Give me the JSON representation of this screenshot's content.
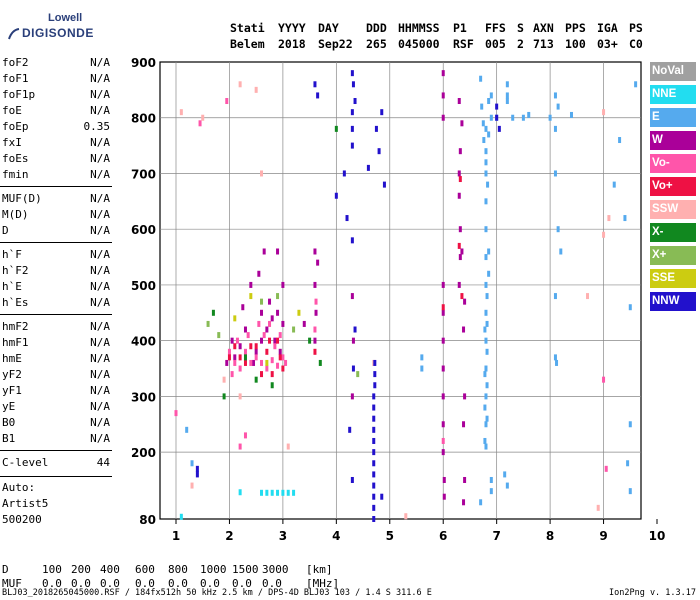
{
  "logo": {
    "top": "Lowell",
    "bottom": "DIGISONDE"
  },
  "header": {
    "line1": [
      "Stati",
      "YYYY",
      "DAY",
      "DDD",
      "HHMMSS",
      "P1",
      "FFS",
      "S",
      "AXN",
      "PPS",
      "IGA",
      "PS"
    ],
    "line2": [
      "Belem",
      "2018",
      "Sep22",
      "265",
      "045000",
      "RSF",
      "005",
      "2",
      "713",
      "100",
      "03+",
      "C0"
    ]
  },
  "params": [
    {
      "name": "foF2",
      "value": "N/A"
    },
    {
      "name": "foF1",
      "value": "N/A"
    },
    {
      "name": "foF1p",
      "value": "N/A"
    },
    {
      "name": "foE",
      "value": "N/A"
    },
    {
      "name": "foEp",
      "value": "0.35"
    },
    {
      "name": "fxI",
      "value": "N/A"
    },
    {
      "name": "foEs",
      "value": "N/A"
    },
    {
      "name": "fmin",
      "value": "N/A"
    },
    {
      "name": "MUF(D)",
      "value": "N/A"
    },
    {
      "name": "M(D)",
      "value": "N/A"
    },
    {
      "name": "D",
      "value": "N/A"
    },
    {
      "name": "h`F",
      "value": "N/A"
    },
    {
      "name": "h`F2",
      "value": "N/A"
    },
    {
      "name": "h`E",
      "value": "N/A"
    },
    {
      "name": "h`Es",
      "value": "N/A"
    },
    {
      "name": "hmF2",
      "value": "N/A"
    },
    {
      "name": "hmF1",
      "value": "N/A"
    },
    {
      "name": "hmE",
      "value": "N/A"
    },
    {
      "name": "yF2",
      "value": "N/A"
    },
    {
      "name": "yF1",
      "value": "N/A"
    },
    {
      "name": "yE",
      "value": "N/A"
    },
    {
      "name": "B0",
      "value": "N/A"
    },
    {
      "name": "B1",
      "value": "N/A"
    },
    {
      "name": "C-level",
      "value": "44"
    }
  ],
  "auto": {
    "label": "Auto:",
    "artist": "Artist5",
    "version": "500200"
  },
  "legend": [
    {
      "label": "NoVal",
      "color": "#a0a0a0"
    },
    {
      "label": "NNE",
      "color": "#22ddf0"
    },
    {
      "label": "E",
      "color": "#55aaee"
    },
    {
      "label": "W",
      "color": "#aa0099"
    },
    {
      "label": "Vo-",
      "color": "#ff55aa"
    },
    {
      "label": "Vo+",
      "color": "#ee1144"
    },
    {
      "label": "SSW",
      "color": "#ffb0b0"
    },
    {
      "label": "X-",
      "color": "#11881f"
    },
    {
      "label": "X+",
      "color": "#88bb55"
    },
    {
      "label": "SSE",
      "color": "#cccc11"
    },
    {
      "label": "NNW",
      "color": "#2211cc"
    }
  ],
  "bottom": {
    "d_label": "D",
    "d_values": [
      "100",
      "200",
      "400",
      "600",
      "800",
      "1000",
      "1500",
      "3000",
      "[km]"
    ],
    "muf_label": "MUF",
    "muf_values": [
      "0.0",
      "0.0",
      "0.0",
      "0.0",
      "0.0",
      "0.0",
      "0.0",
      "0.0",
      "[MHz]"
    ]
  },
  "footer": {
    "left": "BLJ03_2018265045000.RSF / 184fx512h 50 kHz 2.5 km / DPS-4D BLJ03 103 / 1.4 S 311.6 E",
    "right": "Ion2Png v. 1.3.17"
  },
  "chart_data": {
    "type": "scatter",
    "xlim": [
      1,
      10
    ],
    "ylim": [
      80,
      900
    ],
    "xticks": [
      "1",
      "2",
      "3",
      "4",
      "5",
      "6",
      "7",
      "8",
      "9",
      "10"
    ],
    "yticks": [
      "80",
      "200",
      "300",
      "400",
      "500",
      "600",
      "700",
      "800",
      "900"
    ],
    "grid": true,
    "series": [
      {
        "name": "NoVal",
        "points": []
      },
      {
        "name": "NNE",
        "points": [
          [
            2.6,
            127
          ],
          [
            2.7,
            127
          ],
          [
            2.8,
            127
          ],
          [
            2.9,
            127
          ],
          [
            3.0,
            127
          ],
          [
            3.1,
            127
          ],
          [
            3.2,
            127
          ],
          [
            2.2,
            128
          ],
          [
            1.1,
            84
          ]
        ]
      },
      {
        "name": "E",
        "points": [
          [
            6.8,
            210
          ],
          [
            6.8,
            250
          ],
          [
            6.8,
            300
          ],
          [
            6.8,
            350
          ],
          [
            6.8,
            400
          ],
          [
            6.8,
            450
          ],
          [
            6.8,
            500
          ],
          [
            6.8,
            550
          ],
          [
            6.8,
            600
          ],
          [
            6.8,
            650
          ],
          [
            6.82,
            260
          ],
          [
            6.82,
            320
          ],
          [
            6.82,
            380
          ],
          [
            6.82,
            430
          ],
          [
            6.82,
            480
          ],
          [
            6.85,
            520
          ],
          [
            6.85,
            560
          ],
          [
            6.78,
            220
          ],
          [
            6.78,
            280
          ],
          [
            6.78,
            340
          ],
          [
            6.78,
            420
          ],
          [
            6.9,
            150
          ],
          [
            6.9,
            130
          ],
          [
            6.7,
            110
          ],
          [
            7.2,
            860
          ],
          [
            7.2,
            840
          ],
          [
            7.2,
            830
          ],
          [
            7.15,
            160
          ],
          [
            7.2,
            140
          ],
          [
            8.1,
            840
          ],
          [
            8.15,
            820
          ],
          [
            8.1,
            780
          ],
          [
            8.1,
            700
          ],
          [
            8.15,
            600
          ],
          [
            8.2,
            560
          ],
          [
            8.1,
            480
          ],
          [
            8.1,
            370
          ],
          [
            8.12,
            360
          ],
          [
            9.5,
            250
          ],
          [
            9.45,
            180
          ],
          [
            9.5,
            130
          ],
          [
            1.2,
            240
          ],
          [
            1.3,
            180
          ],
          [
            5.6,
            350
          ],
          [
            5.6,
            370
          ],
          [
            6.7,
            870
          ],
          [
            6.72,
            820
          ],
          [
            6.75,
            790
          ],
          [
            6.8,
            780
          ],
          [
            6.85,
            770
          ],
          [
            6.9,
            800
          ],
          [
            7.0,
            800
          ],
          [
            7.3,
            800
          ],
          [
            7.5,
            800
          ],
          [
            7.6,
            805
          ],
          [
            8.0,
            800
          ],
          [
            8.4,
            805
          ],
          [
            9.6,
            860
          ],
          [
            9.3,
            760
          ],
          [
            9.2,
            680
          ],
          [
            9.4,
            620
          ],
          [
            9.5,
            460
          ],
          [
            6.85,
            830
          ],
          [
            6.9,
            840
          ],
          [
            6.76,
            760
          ],
          [
            6.8,
            740
          ],
          [
            6.8,
            720
          ],
          [
            6.8,
            700
          ],
          [
            6.83,
            680
          ]
        ]
      },
      {
        "name": "W",
        "points": [
          [
            6.0,
            200
          ],
          [
            6.0,
            250
          ],
          [
            6.0,
            300
          ],
          [
            6.0,
            350
          ],
          [
            6.0,
            400
          ],
          [
            6.0,
            450
          ],
          [
            6.0,
            500
          ],
          [
            6.02,
            150
          ],
          [
            6.02,
            120
          ],
          [
            6.0,
            800
          ],
          [
            6.0,
            840
          ],
          [
            6.0,
            880
          ],
          [
            6.3,
            660
          ],
          [
            6.3,
            700
          ],
          [
            6.32,
            740
          ],
          [
            6.35,
            790
          ],
          [
            6.3,
            830
          ],
          [
            6.35,
            560
          ],
          [
            6.4,
            470
          ],
          [
            6.38,
            420
          ],
          [
            6.4,
            300
          ],
          [
            6.38,
            250
          ],
          [
            6.4,
            150
          ],
          [
            6.38,
            110
          ],
          [
            3.6,
            400
          ],
          [
            3.62,
            450
          ],
          [
            3.6,
            500
          ],
          [
            3.65,
            540
          ],
          [
            3.6,
            560
          ],
          [
            3.4,
            430
          ],
          [
            2.5,
            380
          ],
          [
            2.6,
            400
          ],
          [
            2.7,
            420
          ],
          [
            2.8,
            440
          ],
          [
            2.9,
            450
          ],
          [
            3.0,
            430
          ],
          [
            2.6,
            450
          ],
          [
            2.75,
            470
          ],
          [
            2.85,
            400
          ],
          [
            2.95,
            380
          ],
          [
            2.45,
            360
          ],
          [
            2.3,
            420
          ],
          [
            2.2,
            390
          ],
          [
            2.1,
            370
          ],
          [
            1.95,
            360
          ],
          [
            2.05,
            400
          ],
          [
            2.25,
            460
          ],
          [
            2.4,
            500
          ],
          [
            2.55,
            520
          ],
          [
            2.65,
            560
          ],
          [
            2.9,
            560
          ],
          [
            3.0,
            500
          ],
          [
            4.3,
            480
          ],
          [
            4.32,
            400
          ],
          [
            4.3,
            300
          ],
          [
            6.3,
            500
          ],
          [
            6.32,
            550
          ],
          [
            6.32,
            600
          ]
        ]
      },
      {
        "name": "Vo-",
        "points": [
          [
            2.0,
            380
          ],
          [
            2.1,
            360
          ],
          [
            2.2,
            350
          ],
          [
            2.3,
            380
          ],
          [
            2.4,
            360
          ],
          [
            2.5,
            370
          ],
          [
            2.6,
            360
          ],
          [
            2.7,
            350
          ],
          [
            2.8,
            365
          ],
          [
            2.9,
            355
          ],
          [
            3.0,
            370
          ],
          [
            3.05,
            360
          ],
          [
            2.05,
            340
          ],
          [
            2.15,
            400
          ],
          [
            2.35,
            410
          ],
          [
            2.55,
            430
          ],
          [
            2.65,
            410
          ],
          [
            2.75,
            430
          ],
          [
            2.85,
            390
          ],
          [
            2.95,
            410
          ],
          [
            3.6,
            420
          ],
          [
            3.62,
            470
          ],
          [
            1.95,
            830
          ],
          [
            1.45,
            790
          ],
          [
            1.0,
            270
          ],
          [
            6.0,
            220
          ],
          [
            9.0,
            330
          ],
          [
            9.05,
            170
          ],
          [
            2.2,
            210
          ],
          [
            2.3,
            230
          ]
        ]
      },
      {
        "name": "Vo+",
        "points": [
          [
            2.0,
            370
          ],
          [
            2.1,
            390
          ],
          [
            2.2,
            370
          ],
          [
            2.3,
            360
          ],
          [
            2.5,
            390
          ],
          [
            2.7,
            380
          ],
          [
            2.9,
            400
          ],
          [
            2.6,
            340
          ],
          [
            2.8,
            340
          ],
          [
            3.0,
            350
          ],
          [
            3.6,
            380
          ],
          [
            6.0,
            460
          ],
          [
            6.35,
            480
          ],
          [
            6.3,
            570
          ],
          [
            6.32,
            690
          ],
          [
            2.4,
            390
          ],
          [
            2.75,
            400
          ],
          [
            2.95,
            370
          ]
        ]
      },
      {
        "name": "SSW",
        "points": [
          [
            1.9,
            330
          ],
          [
            2.2,
            300
          ],
          [
            3.1,
            210
          ],
          [
            9.0,
            810
          ],
          [
            9.1,
            620
          ],
          [
            1.5,
            800
          ],
          [
            8.9,
            100
          ],
          [
            5.3,
            85
          ],
          [
            4.7,
            360
          ],
          [
            2.6,
            700
          ],
          [
            1.1,
            810
          ],
          [
            1.3,
            140
          ],
          [
            2.2,
            860
          ],
          [
            2.5,
            850
          ],
          [
            8.7,
            480
          ],
          [
            9.0,
            590
          ]
        ]
      },
      {
        "name": "X-",
        "points": [
          [
            1.7,
            450
          ],
          [
            2.3,
            370
          ],
          [
            2.8,
            320
          ],
          [
            3.7,
            360
          ],
          [
            4.0,
            780
          ],
          [
            2.5,
            330
          ],
          [
            1.9,
            300
          ],
          [
            3.5,
            400
          ]
        ]
      },
      {
        "name": "X+",
        "points": [
          [
            1.8,
            410
          ],
          [
            2.6,
            470
          ],
          [
            3.2,
            420
          ],
          [
            4.4,
            340
          ],
          [
            1.6,
            430
          ],
          [
            2.9,
            480
          ]
        ]
      },
      {
        "name": "SSE",
        "points": [
          [
            2.1,
            440
          ],
          [
            2.4,
            480
          ],
          [
            3.3,
            450
          ],
          [
            2.7,
            360
          ]
        ]
      },
      {
        "name": "NNW",
        "points": [
          [
            4.7,
            80
          ],
          [
            4.7,
            100
          ],
          [
            4.7,
            120
          ],
          [
            4.7,
            140
          ],
          [
            4.7,
            160
          ],
          [
            4.7,
            180
          ],
          [
            4.7,
            200
          ],
          [
            4.7,
            220
          ],
          [
            4.7,
            240
          ],
          [
            4.7,
            260
          ],
          [
            4.7,
            280
          ],
          [
            4.7,
            300
          ],
          [
            4.72,
            320
          ],
          [
            4.72,
            340
          ],
          [
            4.72,
            360
          ],
          [
            4.3,
            880
          ],
          [
            4.32,
            860
          ],
          [
            4.35,
            830
          ],
          [
            4.3,
            810
          ],
          [
            4.3,
            780
          ],
          [
            4.3,
            750
          ],
          [
            4.15,
            700
          ],
          [
            4.0,
            660
          ],
          [
            4.2,
            620
          ],
          [
            4.3,
            580
          ],
          [
            4.35,
            420
          ],
          [
            4.32,
            350
          ],
          [
            4.6,
            710
          ],
          [
            4.9,
            680
          ],
          [
            4.8,
            740
          ],
          [
            4.75,
            780
          ],
          [
            4.85,
            810
          ],
          [
            3.6,
            860
          ],
          [
            3.65,
            840
          ],
          [
            1.4,
            170
          ],
          [
            1.4,
            160
          ],
          [
            4.25,
            240
          ],
          [
            4.3,
            150
          ],
          [
            4.85,
            120
          ],
          [
            7.0,
            820
          ],
          [
            7.0,
            800
          ],
          [
            7.05,
            780
          ]
        ]
      }
    ]
  }
}
